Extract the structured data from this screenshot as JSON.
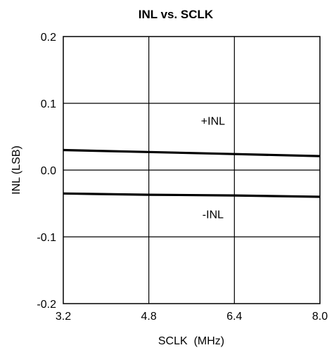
{
  "chart_data": {
    "type": "line",
    "title": "INL vs. SCLK",
    "xlabel": "SCLK  (MHz)",
    "ylabel": "INL (LSB)",
    "xlim": [
      3.2,
      8.0
    ],
    "ylim": [
      -0.2,
      0.2
    ],
    "x_ticks": [
      "3.2",
      "4.8",
      "6.4",
      "8.0"
    ],
    "y_ticks": [
      "0.2",
      "0.1",
      "0.0",
      "-0.1",
      "-0.2"
    ],
    "x_tick_values": [
      3.2,
      4.8,
      6.4,
      8.0
    ],
    "y_tick_values": [
      0.2,
      0.1,
      0.0,
      -0.1,
      -0.2
    ],
    "grid": true,
    "series": [
      {
        "x": [
          3.2,
          4.8,
          6.4,
          8.0
        ],
        "y": [
          0.03,
          0.027,
          0.024,
          0.021
        ]
      },
      {
        "x": [
          3.2,
          4.8,
          6.4,
          8.0
        ],
        "y": [
          -0.035,
          -0.037,
          -0.038,
          -0.04
        ]
      }
    ],
    "annotations": [
      {
        "text": "+INL",
        "x": 6.0,
        "y": 0.068
      },
      {
        "text": "-INL",
        "x": 6.0,
        "y": -0.072
      }
    ]
  }
}
